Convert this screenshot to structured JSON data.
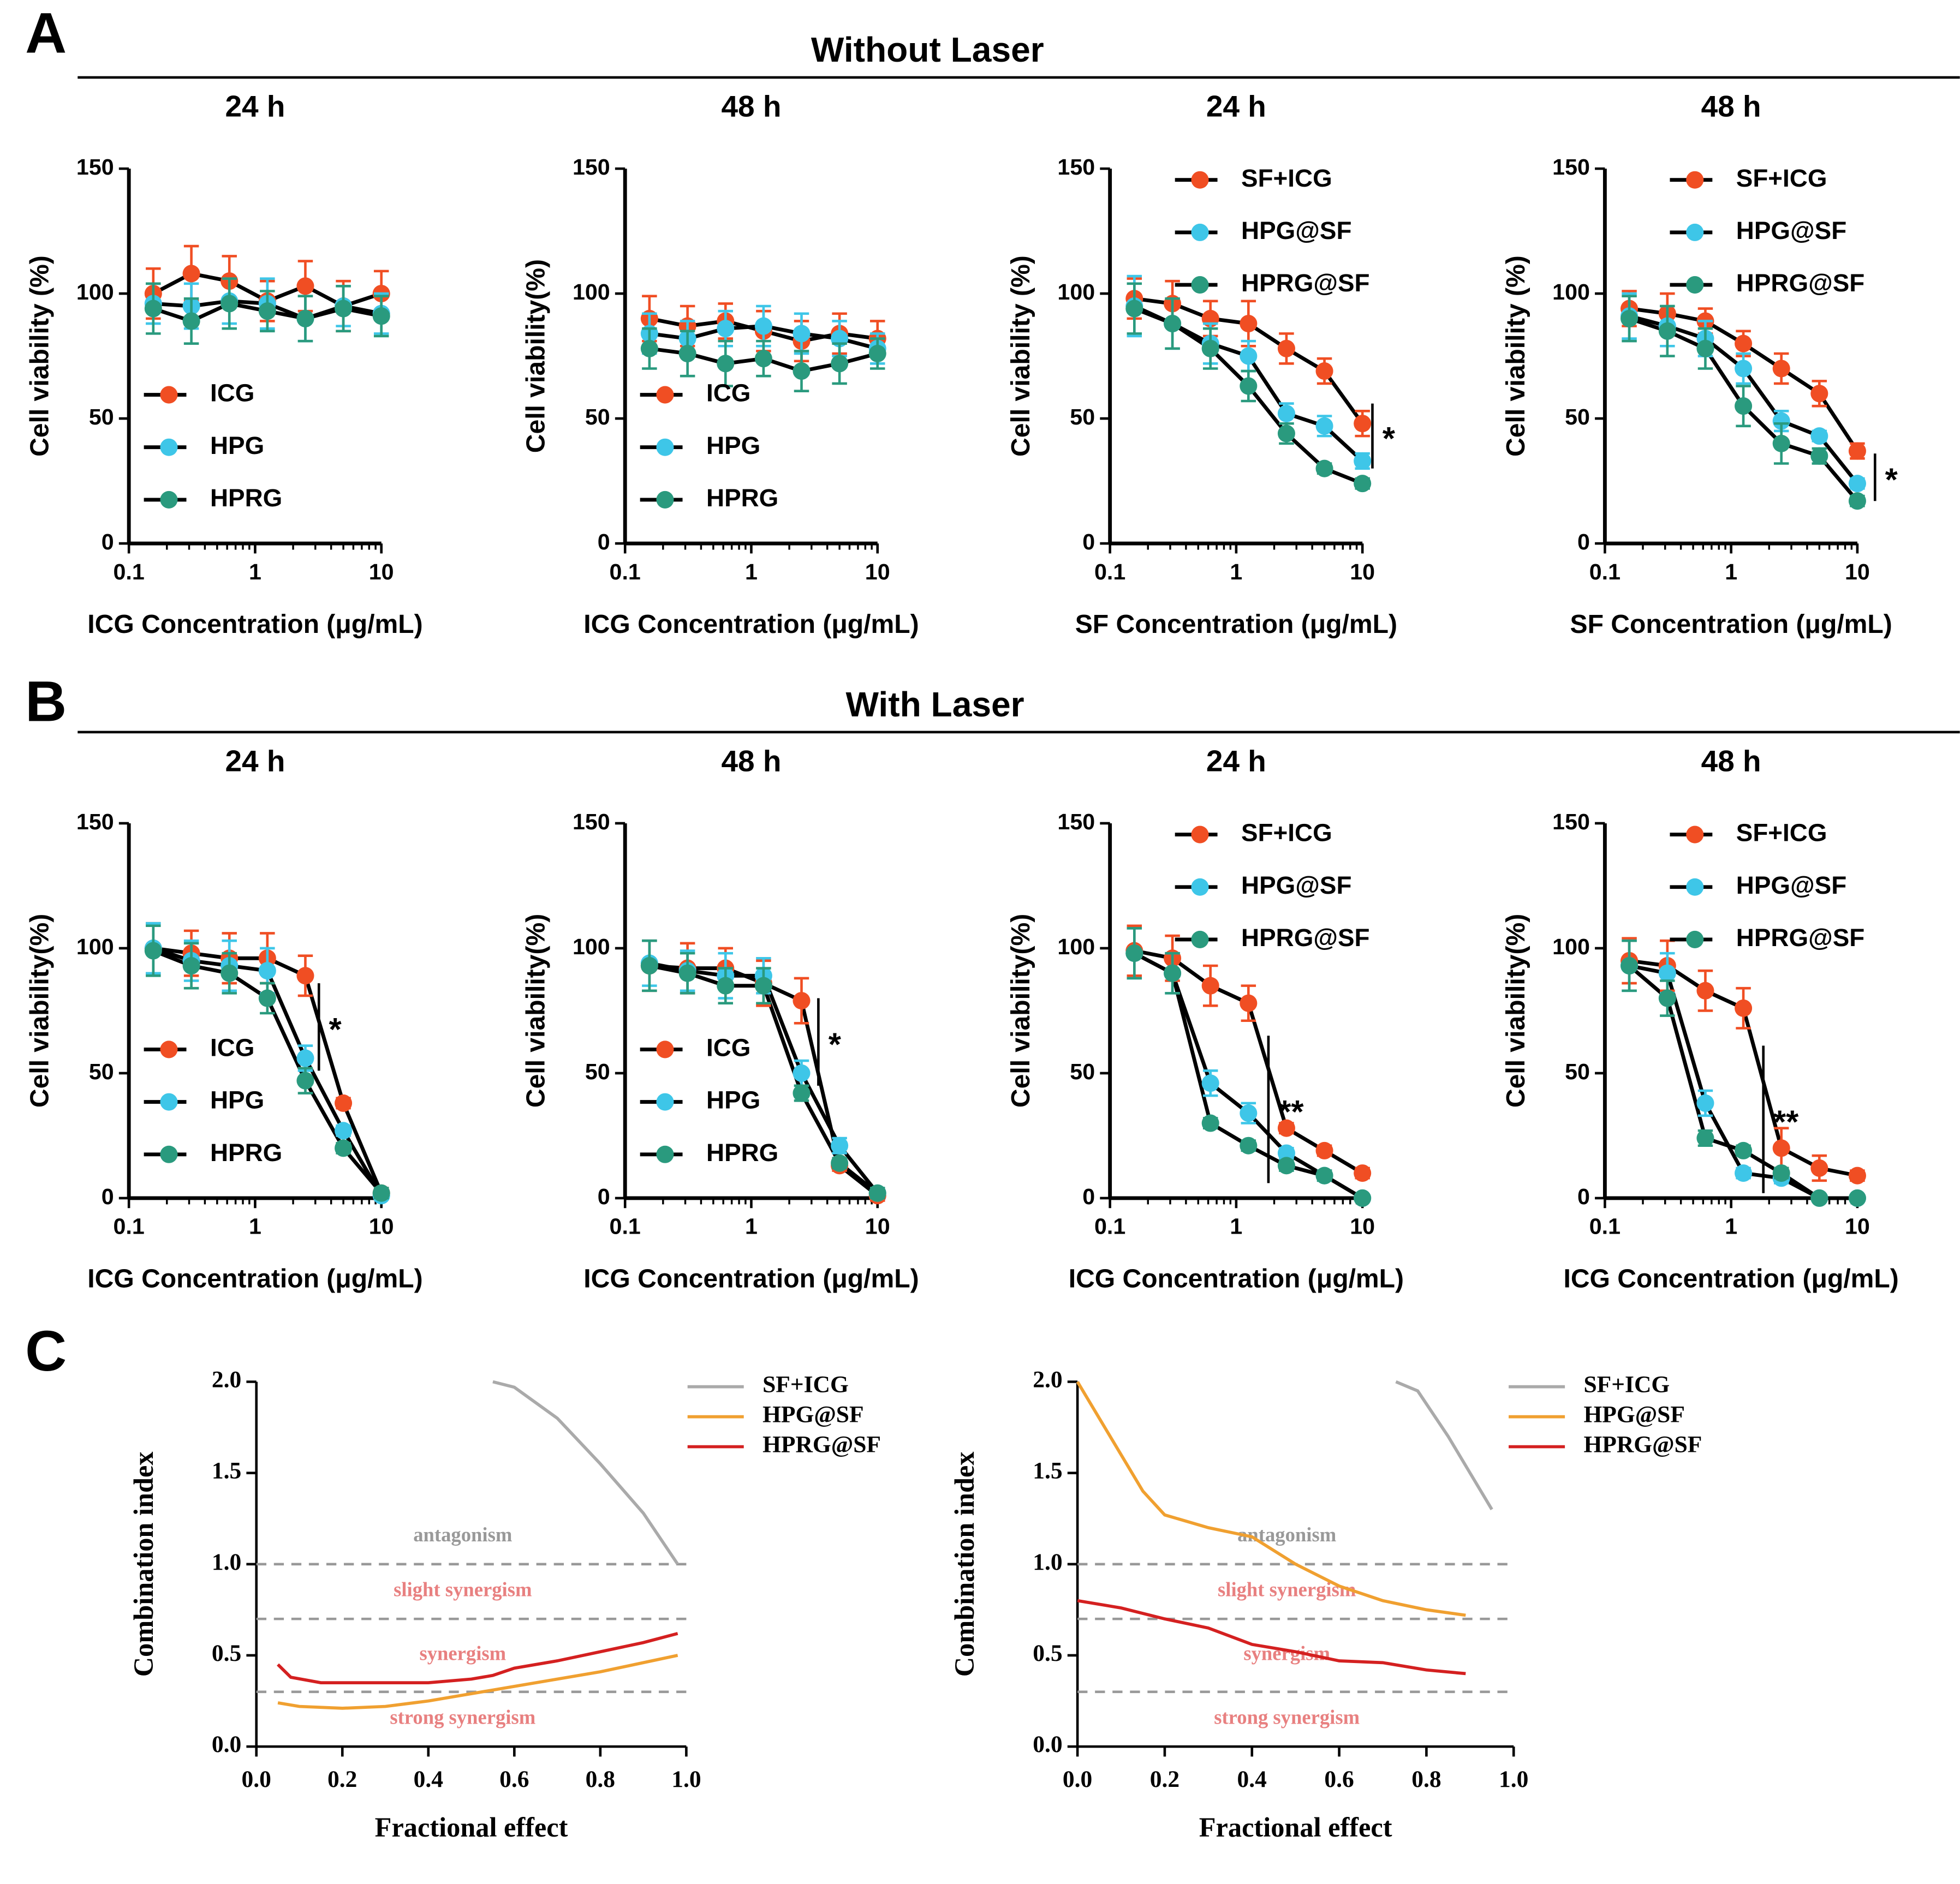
{
  "figure": {
    "sections": [
      {
        "label": "A",
        "title": "Without Laser"
      },
      {
        "label": "B",
        "title": "With Laser"
      },
      {
        "label": "C"
      }
    ]
  },
  "chart_data": [
    {
      "type": "line",
      "title": "24 h",
      "x_label": "ICG Concentration (μg/mL)",
      "y_label": "Cell viability (%)",
      "xscale": "log",
      "x": [
        0.156,
        0.3125,
        0.625,
        1.25,
        2.5,
        5,
        10
      ],
      "xlim": [
        0.1,
        10
      ],
      "xticks": [
        0.1,
        1,
        10
      ],
      "ylim": [
        0,
        150
      ],
      "yticks": [
        0,
        50,
        100,
        150
      ],
      "legend": "lower left",
      "series": [
        {
          "name": "ICG",
          "color": "#f04e23",
          "values": [
            100,
            108,
            105,
            97,
            103,
            95,
            100
          ],
          "errors": [
            10,
            11,
            10,
            8,
            10,
            10,
            9
          ]
        },
        {
          "name": "HPG",
          "color": "#3ec6e8",
          "values": [
            96,
            95,
            97,
            96,
            90,
            95,
            92
          ],
          "errors": [
            8,
            9,
            9,
            10,
            9,
            8,
            8
          ]
        },
        {
          "name": "HPRG",
          "color": "#2a9a7e",
          "values": [
            94,
            89,
            96,
            93,
            90,
            94,
            91
          ],
          "errors": [
            10,
            9,
            10,
            8,
            9,
            9,
            8
          ]
        }
      ]
    },
    {
      "type": "line",
      "title": "48 h",
      "x_label": "ICG Concentration (μg/mL)",
      "y_label": "Cell viability(%)",
      "xscale": "log",
      "x": [
        0.156,
        0.3125,
        0.625,
        1.25,
        2.5,
        5,
        10
      ],
      "xlim": [
        0.1,
        10
      ],
      "xticks": [
        0.1,
        1,
        10
      ],
      "ylim": [
        0,
        150
      ],
      "yticks": [
        0,
        50,
        100,
        150
      ],
      "legend": "lower left",
      "series": [
        {
          "name": "ICG",
          "color": "#f04e23",
          "values": [
            90,
            87,
            89,
            85,
            81,
            84,
            82
          ],
          "errors": [
            9,
            8,
            7,
            8,
            8,
            8,
            7
          ]
        },
        {
          "name": "HPG",
          "color": "#3ec6e8",
          "values": [
            84,
            82,
            86,
            87,
            84,
            82,
            78
          ],
          "errors": [
            8,
            7,
            7,
            8,
            8,
            7,
            6
          ]
        },
        {
          "name": "HPRG",
          "color": "#2a9a7e",
          "values": [
            78,
            76,
            72,
            74,
            69,
            72,
            76
          ],
          "errors": [
            8,
            9,
            9,
            7,
            8,
            8,
            6
          ]
        }
      ]
    },
    {
      "type": "line",
      "title": "24 h",
      "x_label": "SF Concentration (μg/mL)",
      "y_label": "Cell viability (%)",
      "xscale": "log",
      "x": [
        0.156,
        0.3125,
        0.625,
        1.25,
        2.5,
        5,
        10
      ],
      "xlim": [
        0.1,
        10
      ],
      "xticks": [
        0.1,
        1,
        10
      ],
      "ylim": [
        0,
        150
      ],
      "yticks": [
        0,
        50,
        100,
        150
      ],
      "legend": "upper right",
      "series": [
        {
          "name": "SF+ICG",
          "color": "#f04e23",
          "values": [
            98,
            96,
            90,
            88,
            78,
            69,
            48
          ],
          "errors": [
            8,
            9,
            7,
            9,
            6,
            5,
            5
          ]
        },
        {
          "name": "HPG@SF",
          "color": "#3ec6e8",
          "values": [
            95,
            88,
            80,
            75,
            52,
            47,
            33
          ],
          "errors": [
            12,
            10,
            8,
            6,
            4,
            4,
            3
          ]
        },
        {
          "name": "HPRG@SF",
          "color": "#2a9a7e",
          "values": [
            94,
            88,
            78,
            63,
            44,
            30,
            24
          ],
          "errors": [
            10,
            10,
            8,
            6,
            4,
            2,
            2
          ]
        }
      ],
      "annotations": [
        {
          "text": "*",
          "x": 12,
          "y": [
            56,
            30
          ]
        }
      ]
    },
    {
      "type": "line",
      "title": "48 h",
      "x_label": "SF Concentration (μg/mL)",
      "y_label": "Cell viability (%)",
      "xscale": "log",
      "x": [
        0.156,
        0.3125,
        0.625,
        1.25,
        2.5,
        5,
        10
      ],
      "xlim": [
        0.1,
        10
      ],
      "xticks": [
        0.1,
        1,
        10
      ],
      "ylim": [
        0,
        150
      ],
      "yticks": [
        0,
        50,
        100,
        150
      ],
      "legend": "upper right",
      "series": [
        {
          "name": "SF+ICG",
          "color": "#f04e23",
          "values": [
            94,
            92,
            89,
            80,
            70,
            60,
            37
          ],
          "errors": [
            7,
            8,
            5,
            5,
            6,
            5,
            3
          ]
        },
        {
          "name": "HPG@SF",
          "color": "#3ec6e8",
          "values": [
            91,
            87,
            82,
            70,
            49,
            43,
            24
          ],
          "errors": [
            9,
            8,
            7,
            6,
            4,
            2,
            2
          ]
        },
        {
          "name": "HPRG@SF",
          "color": "#2a9a7e",
          "values": [
            90,
            85,
            78,
            55,
            40,
            35,
            17
          ],
          "errors": [
            9,
            10,
            8,
            8,
            8,
            3,
            2
          ]
        }
      ],
      "annotations": [
        {
          "text": "*",
          "x": 13.8,
          "y": [
            36,
            17
          ]
        }
      ]
    },
    {
      "type": "line",
      "title": "24 h",
      "x_label": "ICG Concentration (μg/mL)",
      "y_label": "Cell viability(%)",
      "xscale": "log",
      "x": [
        0.156,
        0.3125,
        0.625,
        1.25,
        2.5,
        5,
        10
      ],
      "xlim": [
        0.1,
        10
      ],
      "xticks": [
        0.1,
        1,
        10
      ],
      "ylim": [
        0,
        150
      ],
      "yticks": [
        0,
        50,
        100,
        150
      ],
      "legend": "lower left",
      "series": [
        {
          "name": "ICG",
          "color": "#f04e23",
          "values": [
            100,
            98,
            96,
            96,
            89,
            38,
            2
          ],
          "errors": [
            10,
            9,
            10,
            10,
            8,
            2,
            2
          ]
        },
        {
          "name": "HPG",
          "color": "#3ec6e8",
          "values": [
            100,
            95,
            93,
            91,
            56,
            27,
            1
          ],
          "errors": [
            10,
            8,
            10,
            9,
            5,
            2,
            1
          ]
        },
        {
          "name": "HPRG",
          "color": "#2a9a7e",
          "values": [
            99,
            93,
            90,
            80,
            47,
            20,
            2
          ],
          "errors": [
            10,
            9,
            8,
            6,
            5,
            2,
            2
          ]
        }
      ],
      "annotations": [
        {
          "text": "*",
          "x": 3.2,
          "y": [
            86,
            51
          ]
        }
      ]
    },
    {
      "type": "line",
      "title": "48 h",
      "x_label": "ICG Concentration (μg/mL)",
      "y_label": "Cell viability(%)",
      "xscale": "log",
      "x": [
        0.156,
        0.3125,
        0.625,
        1.25,
        2.5,
        5,
        10
      ],
      "xlim": [
        0.1,
        10
      ],
      "xticks": [
        0.1,
        1,
        10
      ],
      "ylim": [
        0,
        150
      ],
      "yticks": [
        0,
        50,
        100,
        150
      ],
      "legend": "lower left",
      "series": [
        {
          "name": "ICG",
          "color": "#f04e23",
          "values": [
            93,
            92,
            92,
            86,
            79,
            13,
            1
          ],
          "errors": [
            10,
            10,
            8,
            9,
            9,
            2,
            2
          ]
        },
        {
          "name": "HPG",
          "color": "#3ec6e8",
          "values": [
            94,
            91,
            89,
            89,
            50,
            21,
            2
          ],
          "errors": [
            9,
            8,
            9,
            7,
            5,
            3,
            2
          ]
        },
        {
          "name": "HPRG",
          "color": "#2a9a7e",
          "values": [
            93,
            90,
            85,
            85,
            42,
            14,
            2
          ],
          "errors": [
            10,
            8,
            7,
            7,
            3,
            2,
            2
          ]
        }
      ],
      "annotations": [
        {
          "text": "*",
          "x": 3.4,
          "y": [
            80,
            45
          ]
        }
      ]
    },
    {
      "type": "line",
      "title": "24 h",
      "x_label": "ICG Concentration (μg/mL)",
      "y_label": "Cell viability(%)",
      "xscale": "log",
      "x": [
        0.156,
        0.3125,
        0.625,
        1.25,
        2.5,
        5,
        10
      ],
      "xlim": [
        0.1,
        10
      ],
      "xticks": [
        0.1,
        1,
        10
      ],
      "ylim": [
        0,
        150
      ],
      "yticks": [
        0,
        50,
        100,
        150
      ],
      "legend": "upper right",
      "series": [
        {
          "name": "SF+ICG",
          "color": "#f04e23",
          "values": [
            99,
            96,
            85,
            78,
            28,
            19,
            10
          ],
          "errors": [
            10,
            9,
            8,
            7,
            2,
            2,
            2
          ]
        },
        {
          "name": "HPG@SF",
          "color": "#3ec6e8",
          "values": [
            98,
            90,
            46,
            34,
            18,
            9,
            0
          ],
          "errors": [
            10,
            8,
            5,
            4,
            2,
            2,
            1
          ]
        },
        {
          "name": "HPRG@SF",
          "color": "#2a9a7e",
          "values": [
            98,
            90,
            30,
            21,
            13,
            9,
            0
          ],
          "errors": [
            10,
            8,
            2,
            2,
            2,
            2,
            1
          ]
        }
      ],
      "annotations": [
        {
          "text": "**",
          "x": 1.8,
          "y": [
            65,
            6
          ]
        }
      ]
    },
    {
      "type": "line",
      "title": "48 h",
      "x_label": "ICG Concentration (μg/mL)",
      "y_label": "Cell viability(%)",
      "xscale": "log",
      "x": [
        0.156,
        0.3125,
        0.625,
        1.25,
        2.5,
        5,
        10
      ],
      "xlim": [
        0.1,
        10
      ],
      "xticks": [
        0.1,
        1,
        10
      ],
      "ylim": [
        0,
        150
      ],
      "yticks": [
        0,
        50,
        100,
        150
      ],
      "legend": "upper right",
      "series": [
        {
          "name": "SF+ICG",
          "color": "#f04e23",
          "values": [
            95,
            93,
            83,
            76,
            20,
            12,
            9
          ],
          "errors": [
            9,
            10,
            8,
            8,
            8,
            5,
            2
          ]
        },
        {
          "name": "HPG@SF",
          "color": "#3ec6e8",
          "values": [
            93,
            90,
            38,
            10,
            8,
            0,
            0
          ],
          "errors": [
            10,
            8,
            5,
            2,
            2,
            1,
            1
          ]
        },
        {
          "name": "HPRG@SF",
          "color": "#2a9a7e",
          "values": [
            93,
            80,
            24,
            19,
            10,
            0,
            0
          ],
          "errors": [
            10,
            7,
            3,
            2,
            2,
            1,
            1
          ]
        }
      ],
      "annotations": [
        {
          "text": "**",
          "x": 1.8,
          "y": [
            61,
            2
          ]
        }
      ]
    },
    {
      "type": "ci",
      "x_label": "Fractional effect",
      "y_label": "Combination index",
      "xlim": [
        0,
        1
      ],
      "xticks": [
        {
          "value": 0,
          "label": "0.0"
        },
        0.2,
        0.4,
        0.6,
        0.8,
        {
          "value": 1,
          "label": "1.0"
        }
      ],
      "ylim": [
        0,
        2
      ],
      "yticks": [
        {
          "value": 0,
          "label": "0.0"
        },
        0.5,
        {
          "value": 1,
          "label": "1.0"
        },
        1.5,
        {
          "value": 2,
          "label": "2.0"
        }
      ],
      "reference_lines": [
        1,
        0.7,
        0.3
      ],
      "regions": [
        "antagonism",
        "slight synergism",
        "synergism",
        "strong synergism"
      ],
      "legend": "upper right",
      "series": [
        {
          "name": "SF+ICG",
          "color": "#aaaaaa",
          "x": [
            0.55,
            0.6,
            0.7,
            0.8,
            0.9,
            0.98
          ],
          "values": [
            2.0,
            1.97,
            1.8,
            1.55,
            1.28,
            1.0
          ]
        },
        {
          "name": "HPG@SF",
          "color": "#f0a030",
          "x": [
            0.05,
            0.1,
            0.2,
            0.3,
            0.4,
            0.5,
            0.6,
            0.7,
            0.8,
            0.9,
            0.98
          ],
          "values": [
            0.24,
            0.22,
            0.21,
            0.22,
            0.25,
            0.29,
            0.33,
            0.37,
            0.41,
            0.46,
            0.5
          ]
        },
        {
          "name": "HPRG@SF",
          "color": "#d42020",
          "x": [
            0.05,
            0.08,
            0.15,
            0.3,
            0.4,
            0.5,
            0.55,
            0.6,
            0.7,
            0.8,
            0.9,
            0.98
          ],
          "values": [
            0.45,
            0.38,
            0.35,
            0.35,
            0.35,
            0.37,
            0.39,
            0.43,
            0.47,
            0.52,
            0.57,
            0.62
          ]
        }
      ]
    },
    {
      "type": "ci",
      "x_label": "Fractional effect",
      "y_label": "Combination index",
      "xlim": [
        0,
        1
      ],
      "xticks": [
        {
          "value": 0,
          "label": "0.0"
        },
        0.2,
        0.4,
        0.6,
        0.8,
        {
          "value": 1,
          "label": "1.0"
        }
      ],
      "ylim": [
        0,
        2
      ],
      "yticks": [
        {
          "value": 0,
          "label": "0.0"
        },
        0.5,
        {
          "value": 1,
          "label": "1.0"
        },
        1.5,
        {
          "value": 2,
          "label": "2.0"
        }
      ],
      "reference_lines": [
        1,
        0.7,
        0.3
      ],
      "regions": [
        "antagonism",
        "slight synergism",
        "synergism",
        "strong synergism"
      ],
      "legend": "upper right",
      "series": [
        {
          "name": "SF+ICG",
          "color": "#aaaaaa",
          "x": [
            0.73,
            0.78,
            0.85,
            0.9,
            0.95
          ],
          "values": [
            2.0,
            1.95,
            1.7,
            1.5,
            1.3
          ]
        },
        {
          "name": "HPG@SF",
          "color": "#f0a030",
          "x": [
            0,
            0.05,
            0.1,
            0.15,
            0.2,
            0.3,
            0.4,
            0.5,
            0.6,
            0.7,
            0.8,
            0.89
          ],
          "values": [
            2.0,
            1.8,
            1.6,
            1.4,
            1.27,
            1.2,
            1.15,
            1.0,
            0.88,
            0.8,
            0.75,
            0.72
          ]
        },
        {
          "name": "HPRG@SF",
          "color": "#d42020",
          "x": [
            0,
            0.1,
            0.2,
            0.3,
            0.4,
            0.5,
            0.6,
            0.7,
            0.8,
            0.89
          ],
          "values": [
            0.8,
            0.76,
            0.7,
            0.65,
            0.56,
            0.52,
            0.47,
            0.46,
            0.42,
            0.4
          ]
        }
      ]
    }
  ]
}
